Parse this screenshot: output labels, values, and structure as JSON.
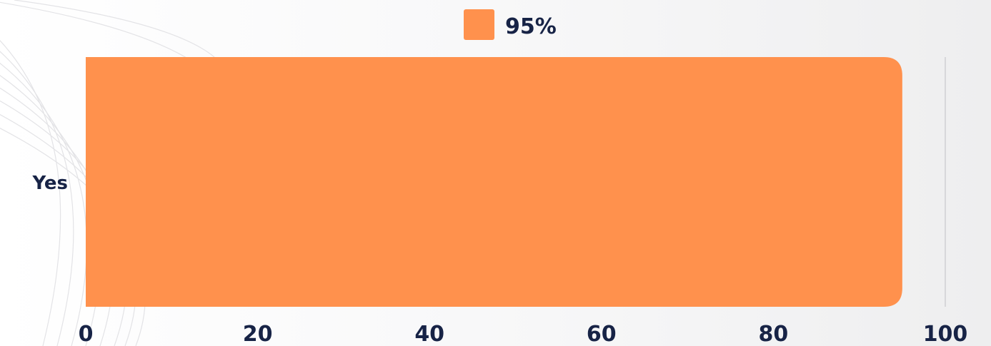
{
  "chart_data": {
    "type": "bar",
    "orientation": "horizontal",
    "categories": [
      "Yes"
    ],
    "series": [
      {
        "name": "95%",
        "values": [
          95
        ],
        "color": "#ff914d"
      }
    ],
    "xlim": [
      0,
      100
    ],
    "xticks": [
      "0",
      "20",
      "40",
      "60",
      "80",
      "100"
    ],
    "legend_position": "top-center",
    "grid": false
  },
  "colors": {
    "bar": "#ff914d",
    "text": "#172346",
    "axis_line": "#cfcfd2"
  }
}
